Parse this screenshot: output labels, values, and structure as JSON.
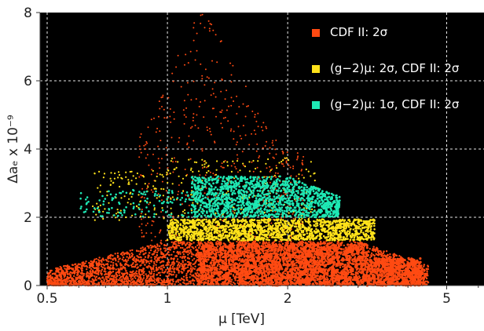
{
  "chart_data": {
    "type": "scatter",
    "title": "",
    "xlabel": "μ [TeV]",
    "ylabel": "Δaₑ x 10⁻⁹",
    "xscale": "log",
    "xlim": [
      0.48,
      6.2
    ],
    "ylim": [
      0,
      8
    ],
    "xticks": [
      0.5,
      1,
      2,
      5
    ],
    "xtick_labels": [
      "0.5",
      "1",
      "2",
      "5"
    ],
    "yticks": [
      0,
      2,
      4,
      6,
      8
    ],
    "ytick_labels": [
      "0",
      "2",
      "4",
      "6",
      "8"
    ],
    "grid": "dashed white lines at x = 0.5, 1, 2, 5 and y = 2, 4, 6",
    "background": "#000000",
    "legend_position": "top-right",
    "series": [
      {
        "name": "CDF II: 2σ",
        "color": "#ff4a12",
        "approx_region": "dense band for Δaₑ from 0 to about 1.3 across μ ≈ 0.5–4.5 TeV, plus scattered points up to about 8 near μ ≈ 1–1.6 TeV"
      },
      {
        "name": "(g−2)μ: 2σ, CDF II: 2σ",
        "color": "#ffe21a",
        "approx_region": "band for Δaₑ from about 1.3 to 1.95, μ ≈ 1–3.3 TeV, with sparse points up to about 3.7"
      },
      {
        "name": "(g−2)μ: 1σ, CDF II: 2σ",
        "color": "#1ee8b4",
        "approx_region": "band for Δaₑ from about 2 to 3.2, μ ≈ 0.6–2.7 TeV"
      }
    ]
  }
}
